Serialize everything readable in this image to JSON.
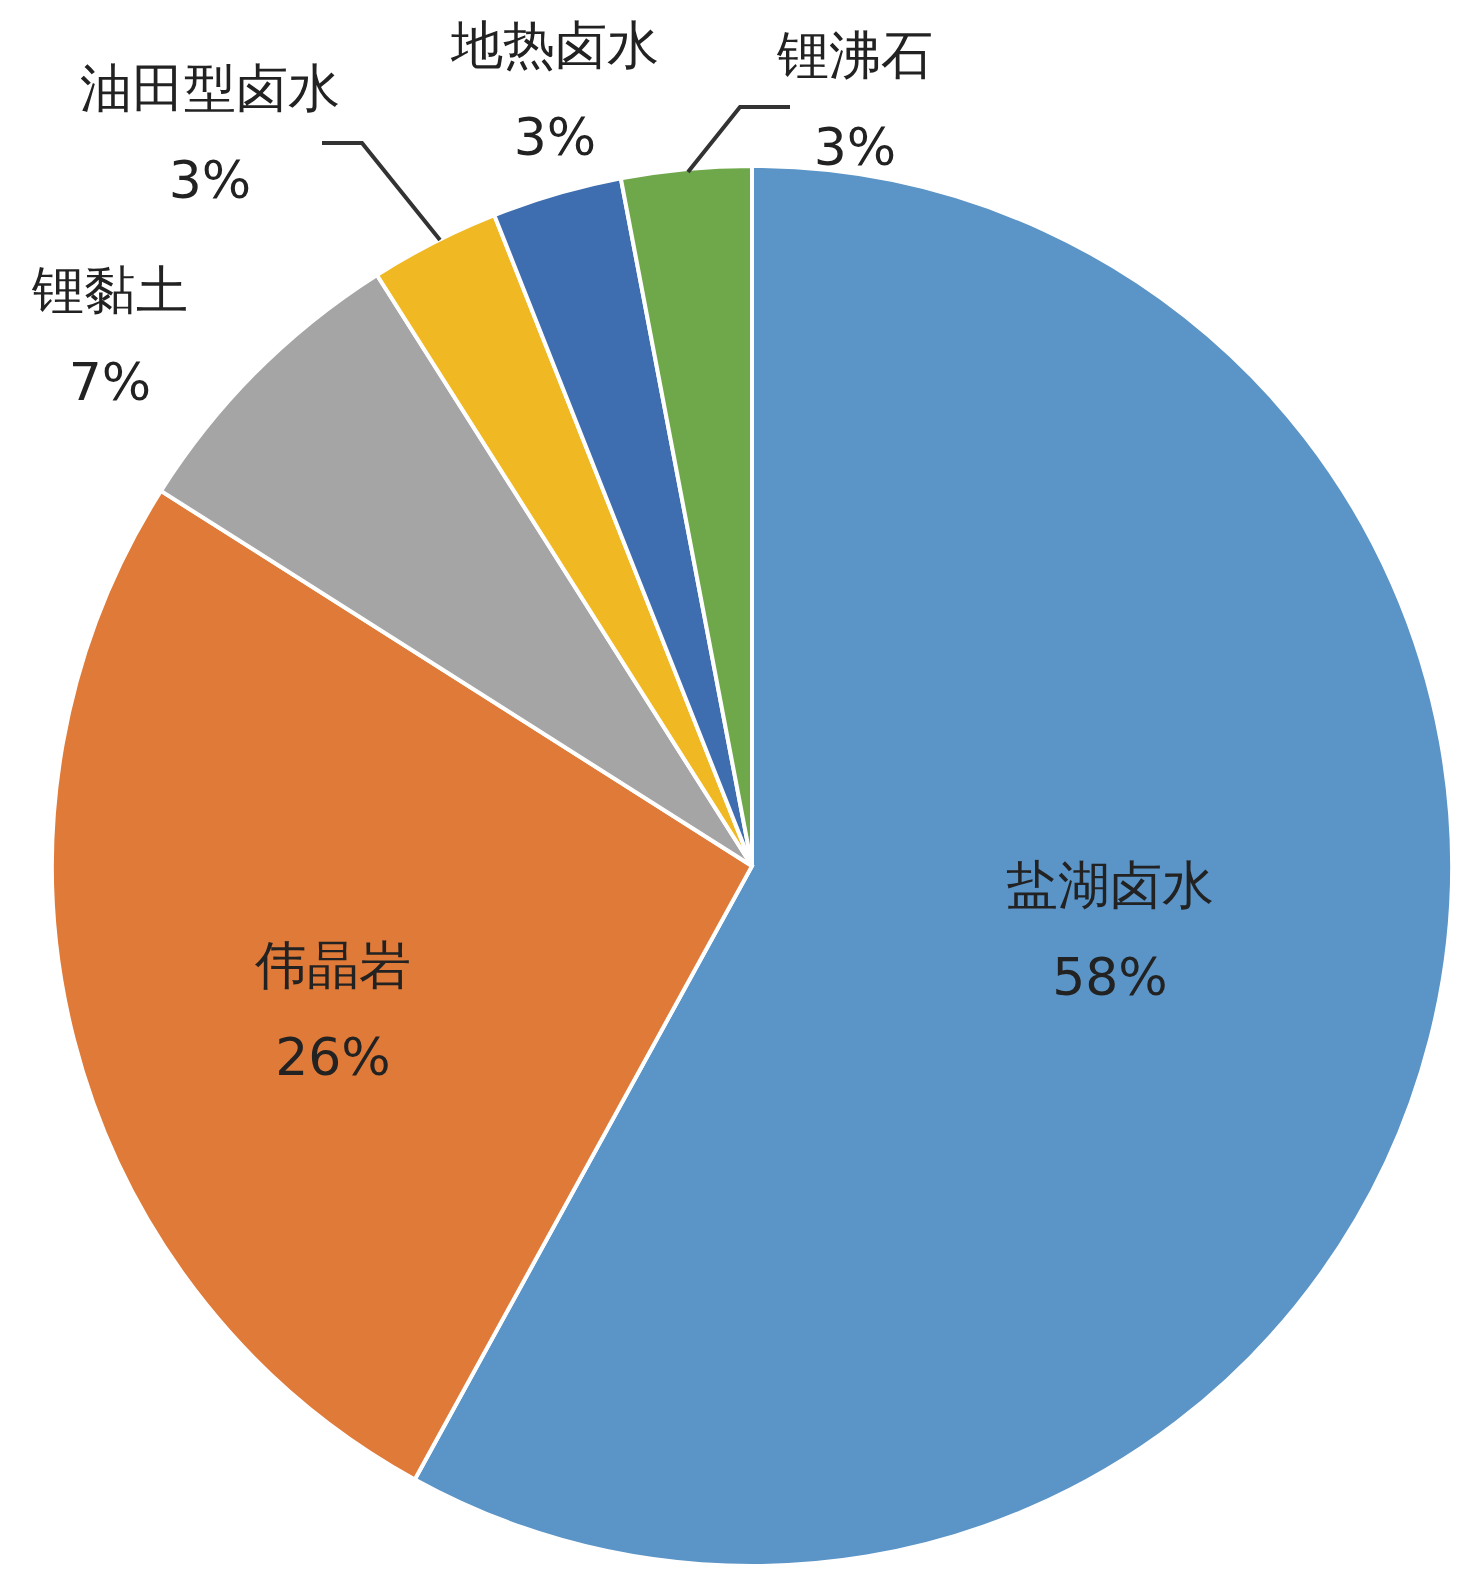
{
  "chart_data": {
    "type": "pie",
    "categories": [
      "盐湖卤水",
      "伟晶岩",
      "锂黏土",
      "油田型卤水",
      "地热卤水",
      "锂沸石"
    ],
    "values": [
      58,
      26,
      7,
      3,
      3,
      3
    ],
    "value_labels": [
      "58%",
      "26%",
      "7%",
      "3%",
      "3%",
      "3%"
    ],
    "colors": [
      "#5b94c6",
      "#e07a38",
      "#a5a5a5",
      "#f0b923",
      "#3f6eb0",
      "#6fa84a"
    ],
    "legend": false
  }
}
